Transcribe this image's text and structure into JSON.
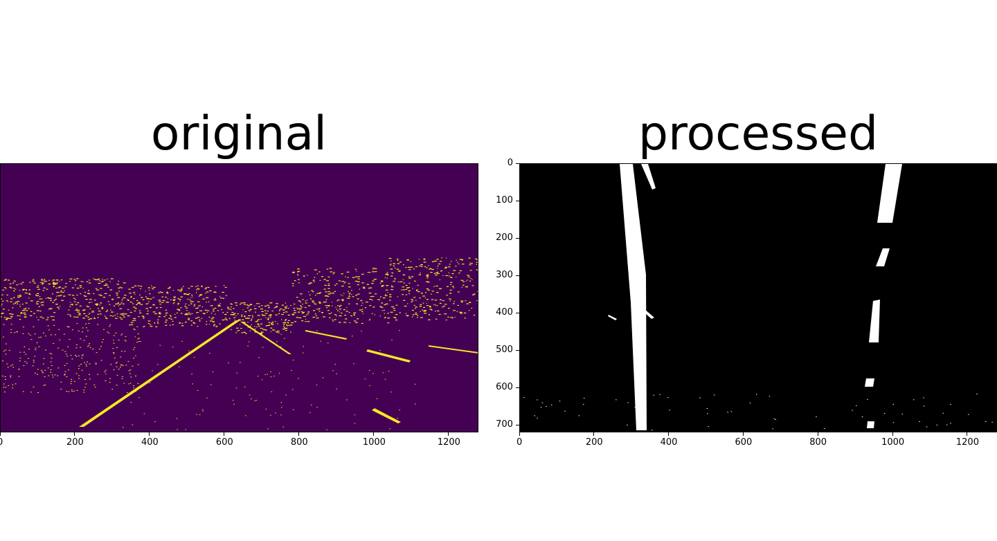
{
  "panels": {
    "left": {
      "title": "original",
      "colormap": "viridis-binary",
      "colors": {
        "background": "#440154",
        "foreground": "#fde725"
      },
      "x_ticks": [
        "0",
        "200",
        "400",
        "600",
        "800",
        "1000",
        "1200"
      ]
    },
    "right": {
      "title": "processed",
      "colormap": "gray-binary",
      "colors": {
        "background": "#000000",
        "foreground": "#ffffff"
      },
      "x_ticks": [
        "0",
        "200",
        "400",
        "600",
        "800",
        "1000",
        "1200"
      ],
      "y_ticks": [
        "0",
        "100",
        "200",
        "300",
        "400",
        "500",
        "600",
        "700"
      ]
    }
  }
}
